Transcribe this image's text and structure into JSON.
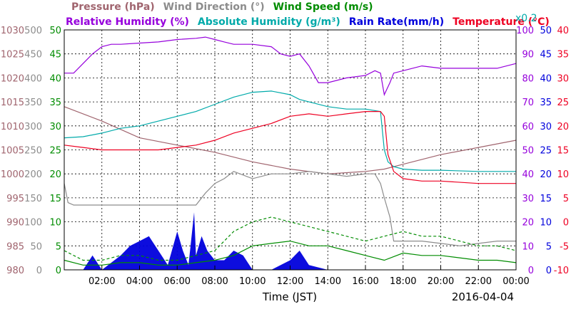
{
  "chart_data": {
    "type": "line",
    "date_label": "2016-04-04",
    "xlabel": "Time (JST)",
    "x_range": [
      "00:00",
      "24:00"
    ],
    "x_ticks": [
      "02:00",
      "04:00",
      "06:00",
      "08:00",
      "10:00",
      "12:00",
      "14:00",
      "16:00",
      "18:00",
      "20:00",
      "22:00",
      "00:00"
    ],
    "grid": true,
    "legend_row1": [
      {
        "name": "Pressure (hPa)",
        "color": "#a0646e"
      },
      {
        "name": "Wind Direction (°)",
        "color": "#8c8c8c"
      },
      {
        "name": "Wind Speed (m/s)",
        "color": "#008c00"
      }
    ],
    "legend_row2": [
      {
        "name": "Relative Humidity (%)",
        "color": "#9600dc"
      },
      {
        "name": "Absolute Humidity (g/m³)",
        "color": "#00aaaa"
      },
      {
        "name": "Rain Rate(mm/h)",
        "color": "#0000dc"
      },
      {
        "name": "Temperature (°C)",
        "color": "#ee0022"
      }
    ],
    "abs_humidity_scale_note": "x0.2",
    "axes": {
      "pressure": {
        "color": "#a0646e",
        "ticks": [
          "1030",
          "1025",
          "1020",
          "1015",
          "1010",
          "1005",
          "1000",
          "995",
          "990",
          "985",
          "980"
        ],
        "range": [
          980,
          1030
        ]
      },
      "wind_direction": {
        "color": "#8c8c8c",
        "ticks": [
          "500",
          "450",
          "400",
          "350",
          "300",
          "250",
          "200",
          "150",
          "100",
          "50",
          "0"
        ],
        "range": [
          0,
          500
        ]
      },
      "wind_speed": {
        "color": "#008c00",
        "ticks": [
          "50",
          "45",
          "40",
          "35",
          "30",
          "25",
          "20",
          "15",
          "10",
          "5",
          "0"
        ],
        "range": [
          0,
          50
        ]
      },
      "humidity": {
        "color": "#9600dc",
        "ticks": [
          "100",
          "90",
          "80",
          "70",
          "60",
          "50",
          "40",
          "30",
          "20",
          "10",
          "0"
        ],
        "range": [
          0,
          100
        ]
      },
      "rain_rate": {
        "color": "#0000dc",
        "ticks": [
          "50",
          "45",
          "40",
          "35",
          "30",
          "25",
          "20",
          "15",
          "10",
          "5",
          "0"
        ],
        "range": [
          0,
          50
        ]
      },
      "temperature": {
        "color": "#ee0022",
        "ticks": [
          "40",
          "35",
          "30",
          "25",
          "20",
          "15",
          "10",
          "5",
          "0",
          "-5",
          "-10"
        ],
        "range": [
          -10,
          40
        ]
      }
    },
    "series": [
      {
        "name": "Pressure (hPa)",
        "axis": "pressure",
        "x": [
          0,
          2,
          4,
          6,
          8,
          10,
          12,
          14,
          16,
          17,
          18,
          20,
          22,
          24
        ],
        "y": [
          1014,
          1011,
          1007.5,
          1006,
          1004.5,
          1002.5,
          1001,
          1000,
          1000.5,
          1001,
          1002,
          1004,
          1005.5,
          1007
        ]
      },
      {
        "name": "Relative Humidity (%)",
        "axis": "humidity",
        "x": [
          0,
          0.5,
          1,
          1.5,
          2,
          2.5,
          3,
          4,
          5,
          6,
          7,
          7.5,
          8,
          8.5,
          9,
          10,
          11,
          11.5,
          12,
          12.5,
          13,
          13.5,
          14,
          15,
          16,
          16.5,
          16.8,
          17,
          17.3,
          17.5,
          18,
          19,
          20,
          21,
          22,
          23,
          24
        ],
        "y": [
          82,
          82,
          86,
          90,
          93,
          94,
          94,
          94.5,
          95,
          96,
          96.5,
          97,
          96,
          95,
          94,
          94,
          93,
          90,
          89,
          90,
          85,
          78,
          78,
          80,
          81,
          83,
          82,
          73,
          78,
          82,
          83,
          85,
          84,
          84,
          84,
          84,
          86
        ]
      },
      {
        "name": "Absolute Humidity (g/m³)",
        "axis": "humidity",
        "x": [
          0,
          1,
          2,
          3,
          4,
          5,
          6,
          7,
          8,
          9,
          10,
          11,
          12,
          12.5,
          13,
          14,
          15,
          16,
          16.8,
          17,
          17.2,
          17.5,
          18,
          19,
          20,
          22,
          24
        ],
        "y": [
          55,
          55.5,
          57,
          59,
          60,
          62,
          64,
          66,
          69,
          72,
          74,
          74.5,
          73,
          71,
          70,
          68,
          67,
          67,
          66,
          50,
          45,
          43,
          42,
          41.5,
          41.5,
          41,
          41
        ]
      },
      {
        "name": "Temperature (°C)",
        "axis": "temperature",
        "x": [
          0,
          1,
          2,
          3,
          4,
          5,
          6,
          7,
          8,
          9,
          10,
          11,
          12,
          13,
          14,
          15,
          16,
          16.8,
          17,
          17.2,
          17.5,
          18,
          19,
          20,
          22,
          24
        ],
        "y": [
          16,
          15.5,
          15,
          15,
          15,
          15,
          15.5,
          16,
          17,
          18.5,
          19.5,
          20.5,
          22,
          22.5,
          22,
          22.5,
          23,
          23,
          22,
          14,
          10.5,
          9,
          8.5,
          8.5,
          8,
          8
        ]
      },
      {
        "name": "Wind Direction (°)",
        "axis": "wind_direction",
        "x": [
          0,
          0.2,
          0.5,
          1,
          2,
          3,
          4,
          5,
          6,
          7,
          7.5,
          8,
          8.5,
          9,
          10,
          11,
          12,
          13,
          14,
          15,
          16,
          16.5,
          16.8,
          17,
          17.3,
          17.5,
          18,
          19,
          20,
          21,
          22,
          23,
          24
        ],
        "y": [
          180,
          140,
          135,
          135,
          135,
          135,
          135,
          135,
          135,
          135,
          160,
          180,
          190,
          205,
          190,
          200,
          200,
          205,
          200,
          195,
          200,
          200,
          180,
          150,
          110,
          60,
          60,
          60,
          55,
          50,
          55,
          60,
          60
        ]
      },
      {
        "name": "Wind Speed (m/s)",
        "axis": "wind_speed",
        "x": [
          0,
          1,
          2,
          3,
          4,
          5,
          6,
          7,
          8,
          9,
          10,
          11,
          12,
          13,
          14,
          15,
          16,
          17,
          18,
          19,
          20,
          21,
          22,
          23,
          24
        ],
        "y": [
          2,
          1,
          1,
          1.5,
          1.5,
          1,
          1,
          1.5,
          2,
          3,
          5,
          5.5,
          6,
          5,
          5,
          4,
          3,
          2,
          3.5,
          3,
          3,
          2.5,
          2,
          2,
          1.5
        ]
      },
      {
        "name": "Wind Speed gust (m/s)",
        "axis": "wind_speed",
        "x": [
          0,
          1,
          2,
          3,
          4,
          5,
          6,
          7,
          8,
          9,
          10,
          11,
          12,
          13,
          14,
          15,
          16,
          17,
          18,
          19,
          20,
          21,
          22,
          23,
          24
        ],
        "y": [
          4,
          2,
          2,
          3,
          3,
          2,
          2,
          3,
          4,
          8,
          10,
          11,
          10,
          9,
          8,
          7,
          6,
          7,
          8,
          7,
          7,
          6,
          5,
          5,
          4
        ]
      },
      {
        "name": "Rain Rate(mm/h)",
        "axis": "rain_rate",
        "x": [
          0,
          1,
          1.5,
          2,
          3,
          3.5,
          4,
          4.5,
          5,
          5.5,
          6,
          6.3,
          6.6,
          6.9,
          7,
          7.3,
          7.6,
          8,
          8.5,
          9,
          9.5,
          10,
          11,
          12,
          12.5,
          13,
          14,
          15,
          16,
          17,
          18,
          20,
          22,
          24
        ],
        "y": [
          0,
          0,
          3,
          0,
          3,
          5,
          6,
          7,
          4,
          1,
          8,
          4,
          1,
          12,
          3,
          7,
          4,
          2,
          2,
          4,
          3,
          0,
          0,
          2,
          4,
          1,
          0,
          0,
          0,
          0,
          0,
          0,
          0,
          0
        ]
      }
    ]
  }
}
